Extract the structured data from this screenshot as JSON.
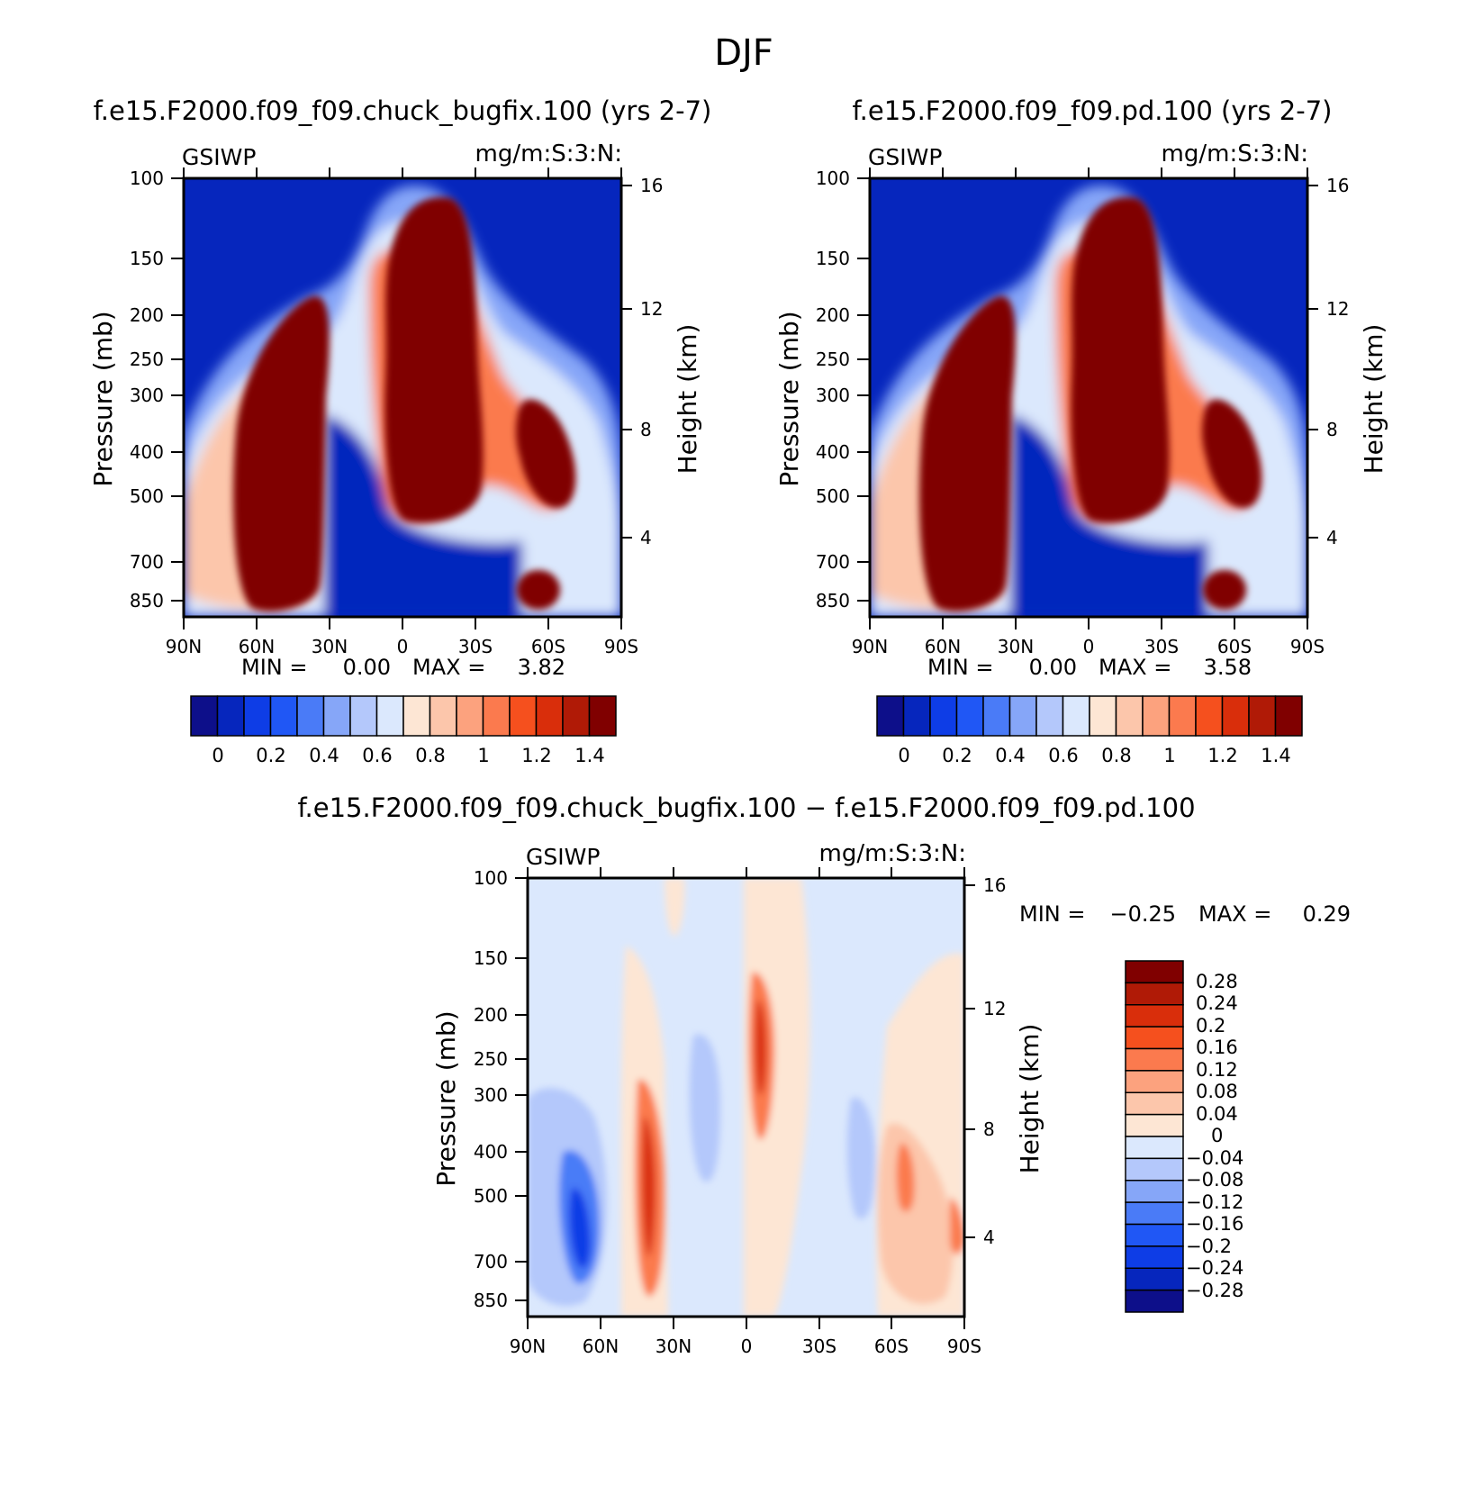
{
  "figure": {
    "title": "DJF",
    "field": "GSIWP",
    "units": "mg/m:S:3:N:"
  },
  "axes": {
    "xlabel": "",
    "ylabel_left": "Pressure (mb)",
    "ylabel_right": "Height (km)",
    "x_ticks": [
      "90N",
      "60N",
      "30N",
      "0",
      "30S",
      "60S",
      "90S"
    ],
    "y_ticks": [
      "100",
      "150",
      "200",
      "250",
      "300",
      "400",
      "500",
      "700",
      "850"
    ],
    "height_ticks": [
      "16",
      "12",
      "8",
      "4"
    ]
  },
  "colors": {
    "seq_levels": [
      "#0d0f8a",
      "#0626bd",
      "#0e3de6",
      "#2057f5",
      "#4a7bf7",
      "#86a6f8",
      "#b4c8fb",
      "#dbe8fd",
      "#fde6d4",
      "#fcc6ab",
      "#fca27e",
      "#fb7a4e",
      "#f5501e",
      "#d92e0b",
      "#b01a06",
      "#800000"
    ],
    "div_levels": [
      "#0d0f8a",
      "#0626bd",
      "#0e3de6",
      "#2057f5",
      "#4a7bf7",
      "#86a6f8",
      "#b4c8fb",
      "#dbe8fd",
      "#fde6d4",
      "#fcc6ab",
      "#fca27e",
      "#fb7a4e",
      "#f5501e",
      "#d92e0b",
      "#b01a06",
      "#800000"
    ]
  },
  "chart_data": [
    {
      "type": "heatmap",
      "title": "f.e15.F2000.f09_f09.chuck_bugfix.100 (yrs 2-7)",
      "xlabel": "",
      "ylabel": "Pressure (mb)",
      "x_range": [
        "90N",
        "90S"
      ],
      "y_range": [
        850,
        100
      ],
      "min_label": "MIN =",
      "min": "0.00",
      "max_label": "MAX =",
      "max": "3.82",
      "colorbar_labels": [
        "0",
        "0.2",
        "0.4",
        "0.6",
        "0.8",
        "1",
        "1.2",
        "1.4"
      ]
    },
    {
      "type": "heatmap",
      "title": "f.e15.F2000.f09_f09.pd.100 (yrs 2-7)",
      "xlabel": "",
      "ylabel": "Pressure (mb)",
      "x_range": [
        "90N",
        "90S"
      ],
      "y_range": [
        850,
        100
      ],
      "min_label": "MIN =",
      "min": "0.00",
      "max_label": "MAX =",
      "max": "3.58",
      "colorbar_labels": [
        "0",
        "0.2",
        "0.4",
        "0.6",
        "0.8",
        "1",
        "1.2",
        "1.4"
      ]
    },
    {
      "type": "heatmap",
      "title": "f.e15.F2000.f09_f09.chuck_bugfix.100 − f.e15.F2000.f09_f09.pd.100",
      "xlabel": "",
      "ylabel": "Pressure (mb)",
      "x_range": [
        "90N",
        "90S"
      ],
      "y_range": [
        850,
        100
      ],
      "min_label": "MIN =",
      "min": "−0.25",
      "max_label": "MAX =",
      "max": "0.29",
      "colorbar_labels": [
        "0.28",
        "0.24",
        "0.2",
        "0.16",
        "0.12",
        "0.08",
        "0.04",
        "0",
        "−0.04",
        "−0.08",
        "−0.12",
        "−0.16",
        "−0.2",
        "−0.24",
        "−0.28"
      ]
    }
  ]
}
